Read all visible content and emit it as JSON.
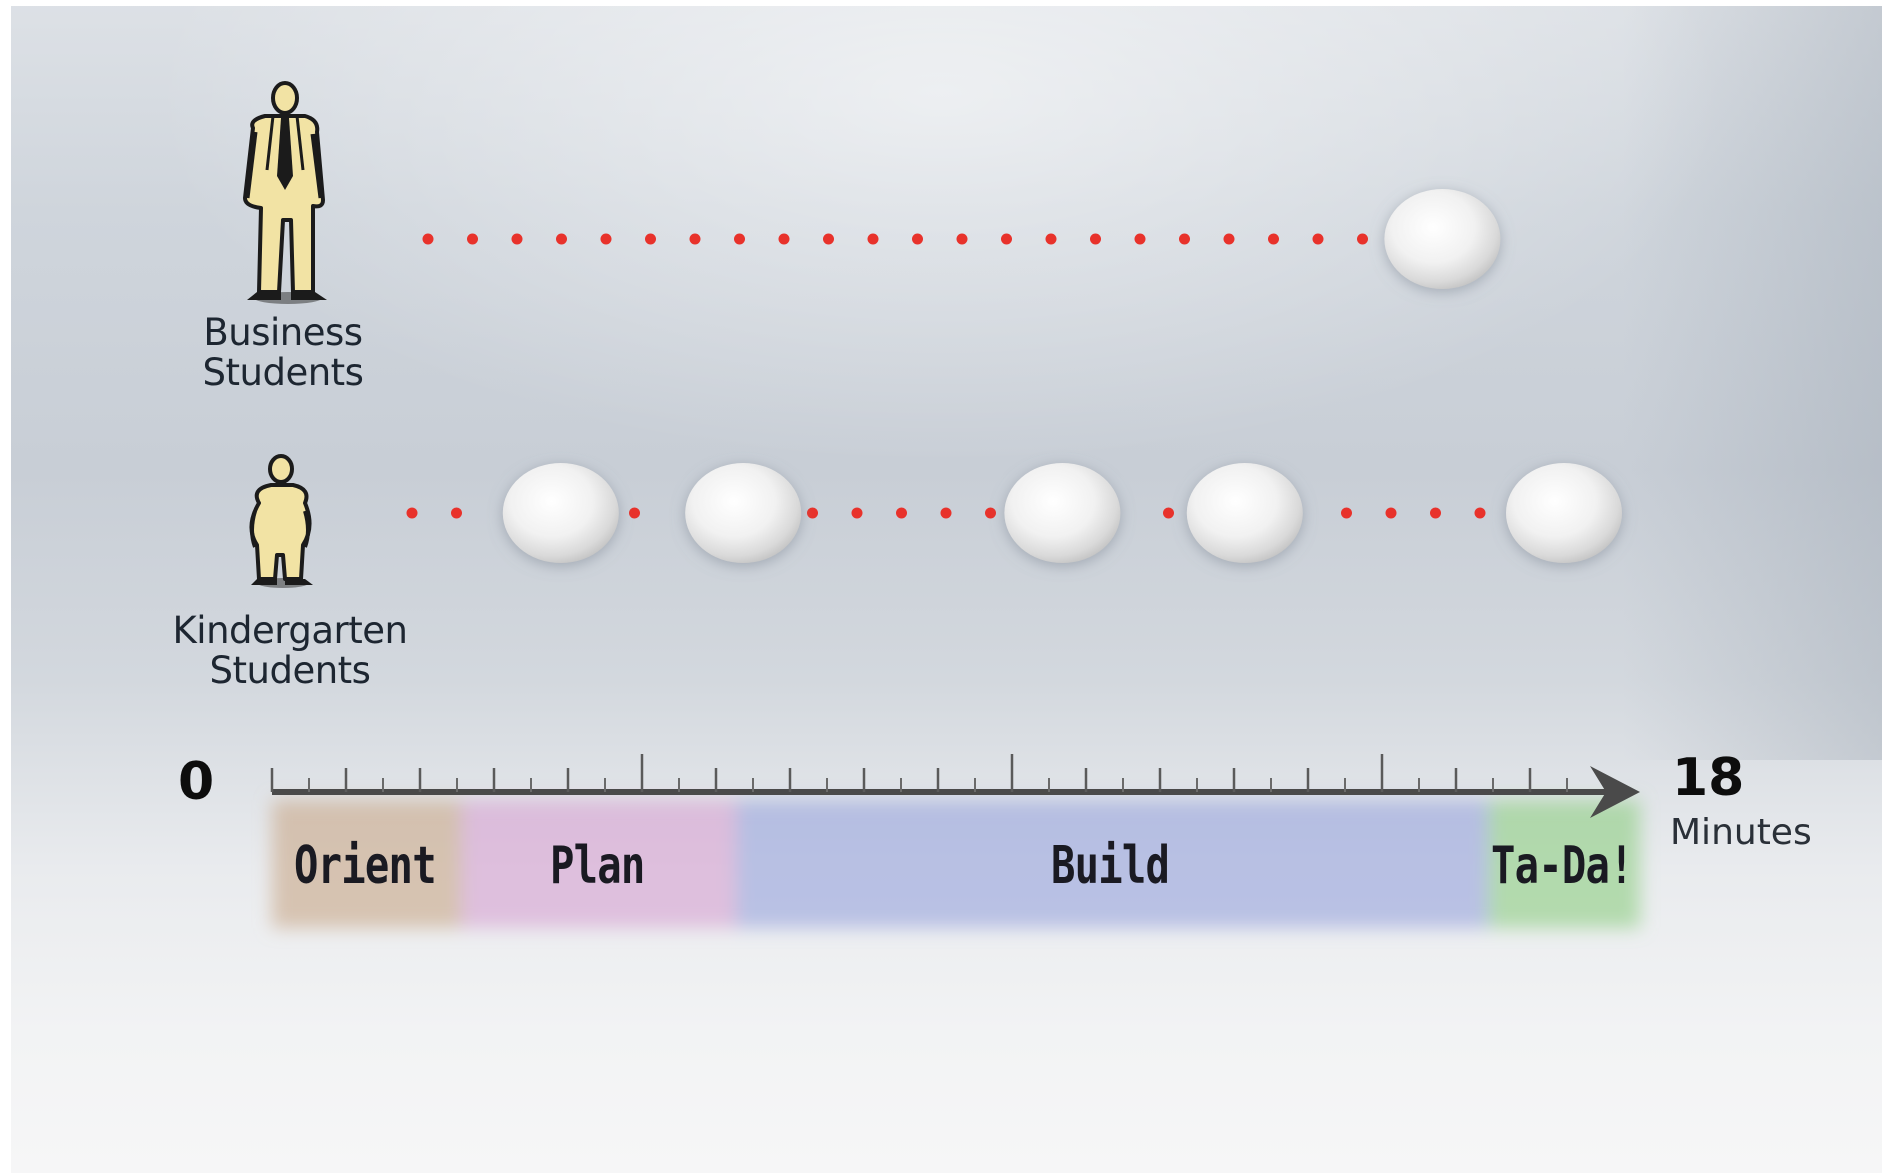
{
  "groups": [
    {
      "id": "business",
      "label_line1": "Business",
      "label_line2": "Students",
      "attempts_at_minute": [
        15.4
      ]
    },
    {
      "id": "kindergarten",
      "label_line1": "Kindergarten",
      "label_line2": "Students",
      "attempts_at_minute": [
        3.8,
        6.2,
        10.4,
        12.8,
        17.0
      ]
    }
  ],
  "axis": {
    "start_label": "0",
    "end_label": "18",
    "unit_label": "Minutes",
    "min": 0,
    "max": 18
  },
  "phases": [
    {
      "name": "Orient",
      "start": 0,
      "end": 2.5,
      "color": "#c9a98a"
    },
    {
      "name": "Plan",
      "start": 2.5,
      "end": 6.1,
      "color": "#d7a3d2"
    },
    {
      "name": "Build",
      "start": 6.1,
      "end": 16.0,
      "color": "#9aa6dd"
    },
    {
      "name": "Ta-Da!",
      "start": 16.0,
      "end": 18.0,
      "color": "#8fce84"
    }
  ],
  "colors": {
    "dot": "#e8322b",
    "figure_fill": "#f2e3a4",
    "figure_stroke": "#1b1b1b",
    "axis": "#4a4a4a"
  }
}
